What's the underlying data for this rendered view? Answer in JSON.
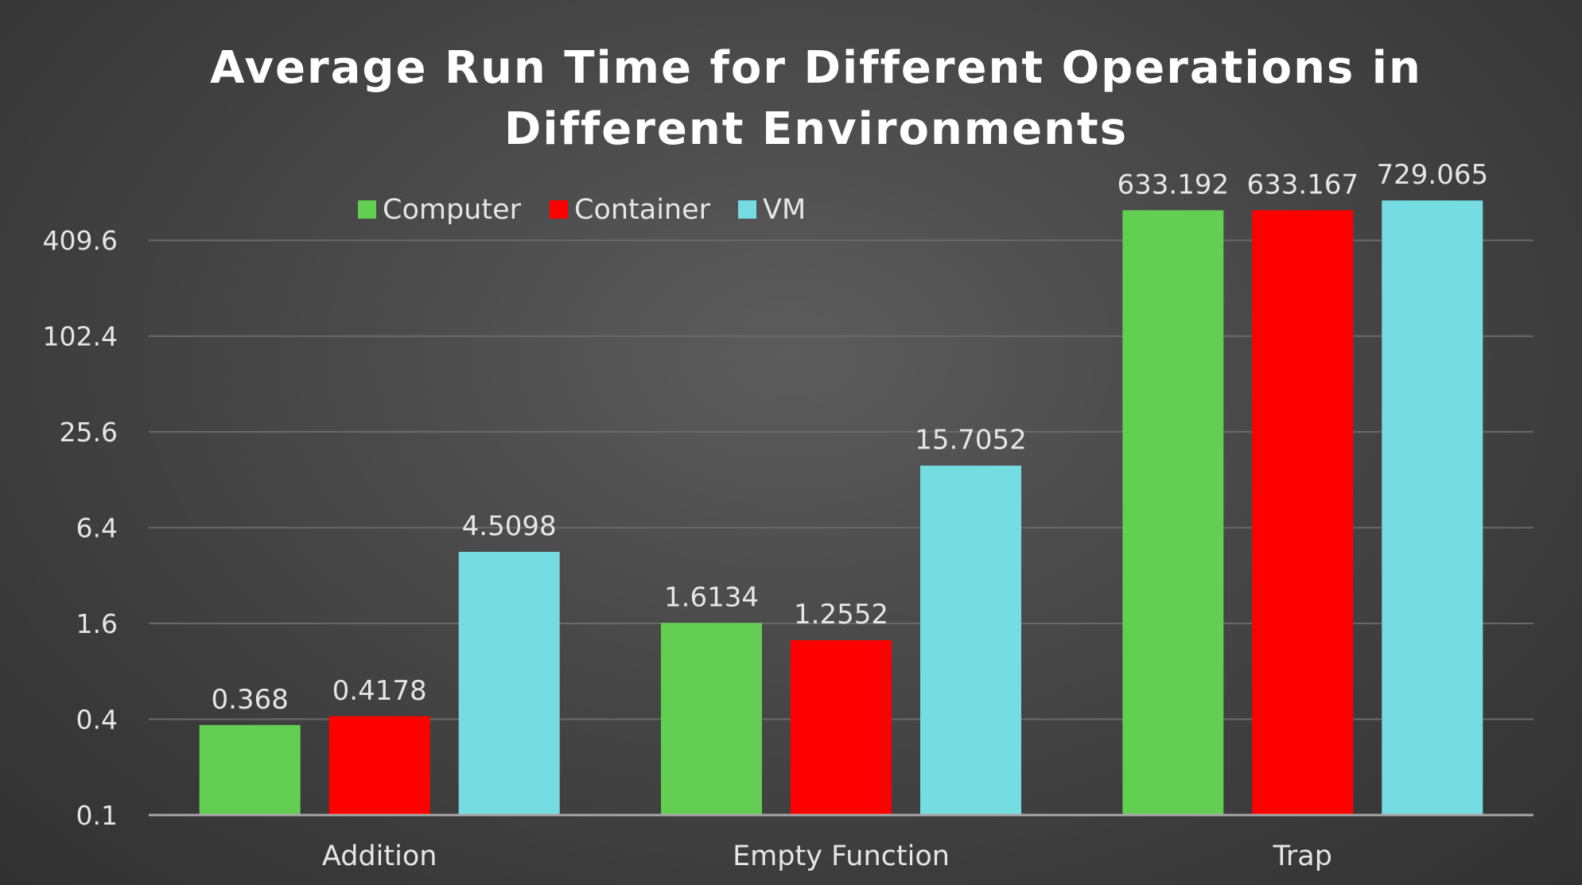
{
  "chart_data": {
    "type": "bar",
    "title_lines": [
      "Average Run Time for Different Operations in",
      "Different Environments"
    ],
    "categories": [
      "Addition",
      "Empty Function",
      "Trap"
    ],
    "series": [
      {
        "name": "Computer",
        "color": "#62ce52",
        "values": [
          0.368,
          1.6134,
          633.192
        ],
        "labels": [
          "0.368",
          "1.6134",
          "633.192"
        ]
      },
      {
        "name": "Container",
        "color": "#ff0000",
        "values": [
          0.4178,
          1.2552,
          633.167
        ],
        "labels": [
          "0.4178",
          "1.2552",
          "633.167"
        ]
      },
      {
        "name": "VM",
        "color": "#75dde2",
        "values": [
          4.5098,
          15.7052,
          729.065
        ],
        "labels": [
          "4.5098",
          "15.7052",
          "729.065"
        ]
      }
    ],
    "y_scale": "log4",
    "ylim": [
      0.1,
      819.2
    ],
    "y_ticks": [
      0.1,
      0.4,
      1.6,
      6.4,
      25.6,
      102.4,
      409.6
    ],
    "y_tick_labels": [
      "0.1",
      "0.4",
      "1.6",
      "6.4",
      "25.6",
      "102.4",
      "409.6"
    ],
    "xlabel": "",
    "ylabel": "",
    "grid": true,
    "legend_position": "top-center",
    "background": "#464646"
  }
}
